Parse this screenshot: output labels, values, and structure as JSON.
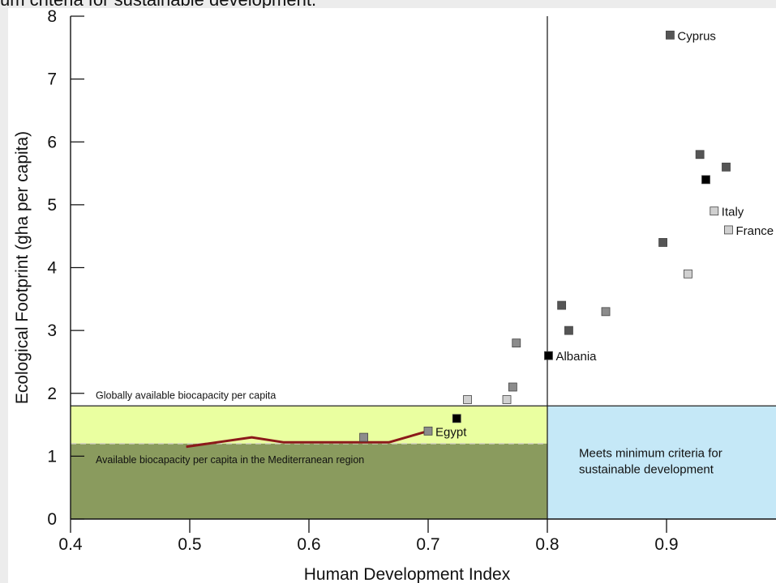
{
  "caption": "um criteria for sustainable development.",
  "chart_data": {
    "type": "scatter",
    "xlabel": "Human Development Index",
    "ylabel": "Ecological Footprint (gha per capita)",
    "xlim": [
      0.4,
      0.99
    ],
    "ylim": [
      0,
      8
    ],
    "xticks": [
      "0.4",
      "0.5",
      "0.6",
      "0.7",
      "0.8",
      "0.9"
    ],
    "yticks": [
      "0",
      "1",
      "2",
      "3",
      "4",
      "5",
      "6",
      "7",
      "8"
    ],
    "grid": false,
    "reference_lines": {
      "global_biocapacity": 1.8,
      "mediterranean_biocapacity": 1.2,
      "hdi_threshold": 0.8
    },
    "annotations": {
      "global_biocapacity_label": "Globally available biocapacity per capita",
      "mediterranean_biocapacity_label": "Available biocapacity per capita in the Mediterranean region",
      "sustainable_region_label_line1": "Meets minimum criteria for",
      "sustainable_region_label_line2": "sustainable development"
    },
    "colors": {
      "global_band": "#eaffa0",
      "mediterranean_band": "#8a9b5e",
      "sustainable_region": "#c5e8f7",
      "trajectory_line": "#8b1a1a",
      "marker_black": "#000000",
      "marker_dark": "#555555",
      "marker_mid": "#8c8c8c",
      "marker_light": "#d0d0d0"
    },
    "points": [
      {
        "x": 0.903,
        "y": 7.7,
        "shade": "dark",
        "label": "Cyprus"
      },
      {
        "x": 0.928,
        "y": 5.8,
        "shade": "dark",
        "label": ""
      },
      {
        "x": 0.95,
        "y": 5.6,
        "shade": "dark",
        "label": ""
      },
      {
        "x": 0.933,
        "y": 5.4,
        "shade": "black",
        "label": ""
      },
      {
        "x": 0.94,
        "y": 4.9,
        "shade": "light",
        "label": "Italy"
      },
      {
        "x": 0.952,
        "y": 4.6,
        "shade": "light",
        "label": "France"
      },
      {
        "x": 0.897,
        "y": 4.4,
        "shade": "dark",
        "label": ""
      },
      {
        "x": 0.918,
        "y": 3.9,
        "shade": "light",
        "label": ""
      },
      {
        "x": 0.812,
        "y": 3.4,
        "shade": "dark",
        "label": ""
      },
      {
        "x": 0.849,
        "y": 3.3,
        "shade": "mid",
        "label": ""
      },
      {
        "x": 0.818,
        "y": 3.0,
        "shade": "dark",
        "label": ""
      },
      {
        "x": 0.774,
        "y": 2.8,
        "shade": "mid",
        "label": ""
      },
      {
        "x": 0.801,
        "y": 2.6,
        "shade": "black",
        "label": "Albania"
      },
      {
        "x": 0.771,
        "y": 2.1,
        "shade": "mid",
        "label": ""
      },
      {
        "x": 0.733,
        "y": 1.9,
        "shade": "light",
        "label": ""
      },
      {
        "x": 0.766,
        "y": 1.9,
        "shade": "light",
        "label": ""
      },
      {
        "x": 0.724,
        "y": 1.6,
        "shade": "black",
        "label": ""
      },
      {
        "x": 0.7,
        "y": 1.4,
        "shade": "mid",
        "label": "Egypt"
      },
      {
        "x": 0.646,
        "y": 1.3,
        "shade": "mid",
        "label": ""
      }
    ],
    "trajectory": {
      "x": [
        0.497,
        0.552,
        0.579,
        0.6,
        0.62,
        0.64,
        0.667,
        0.7
      ],
      "y": [
        1.15,
        1.3,
        1.22,
        1.22,
        1.22,
        1.22,
        1.22,
        1.4
      ]
    }
  }
}
